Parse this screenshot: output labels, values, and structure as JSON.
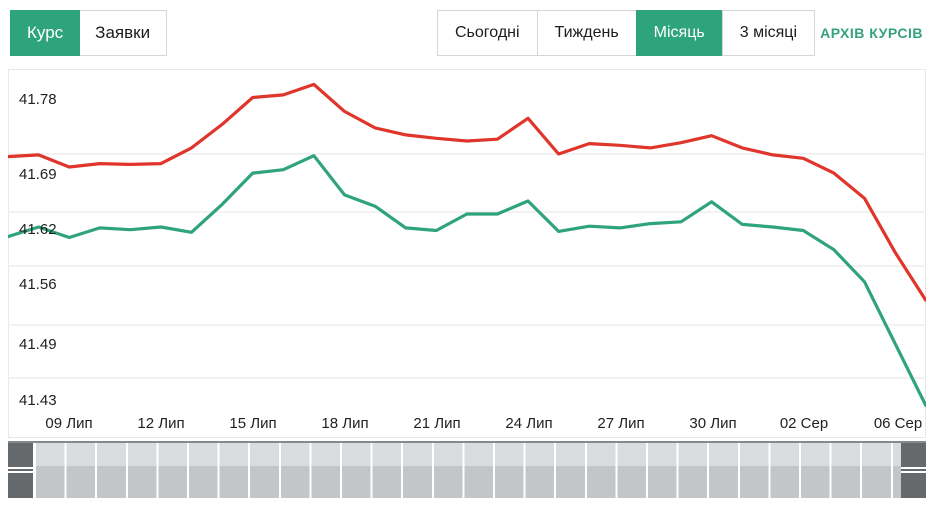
{
  "tabs": [
    {
      "label": "Курс",
      "active": true
    },
    {
      "label": "Заявки",
      "active": false
    }
  ],
  "periods": [
    {
      "label": "Сьогодні",
      "active": false
    },
    {
      "label": "Тиждень",
      "active": false
    },
    {
      "label": "Місяць",
      "active": true
    },
    {
      "label": "3 місяці",
      "active": false
    }
  ],
  "archive_link": "АРХІВ КУРСІВ",
  "colors": {
    "accent_green": "#2ea47c",
    "archive_text": "#35a27e",
    "red_line": "#e0352b",
    "green_line": "#2fa37c",
    "grid": "#ededed",
    "axis_text": "#212121",
    "slider_handle": "#65696b"
  },
  "chart_data": {
    "type": "line",
    "title": "",
    "xlabel": "",
    "ylabel": "",
    "grid": true,
    "legend": "none",
    "ylim": [
      41.39,
      41.8
    ],
    "y_tick_labels": [
      "41.78",
      "41.69",
      "41.62",
      "41.56",
      "41.49",
      "41.43"
    ],
    "x_tick_labels": [
      "09 Лип",
      "12 Лип",
      "15 Лип",
      "18 Лип",
      "21 Лип",
      "24 Лип",
      "27 Лип",
      "30 Лип",
      "02 Сер",
      "06 Сер"
    ],
    "x": [
      "07.07",
      "08.07",
      "09.07",
      "10.07",
      "11.07",
      "12.07",
      "13.07",
      "14.07",
      "15.07",
      "16.07",
      "17.07",
      "18.07",
      "19.07",
      "20.07",
      "21.07",
      "22.07",
      "23.07",
      "24.07",
      "25.07",
      "26.07",
      "27.07",
      "28.07",
      "29.07",
      "30.07",
      "31.07",
      "01.08",
      "02.08",
      "03.08",
      "04.08",
      "05.08",
      "06.08"
    ],
    "series": [
      {
        "name": "red-series",
        "color": "#e0352b",
        "values": [
          41.687,
          41.689,
          41.675,
          41.679,
          41.678,
          41.679,
          41.697,
          41.724,
          41.755,
          41.758,
          41.77,
          41.739,
          41.72,
          41.712,
          41.708,
          41.705,
          41.707,
          41.731,
          41.69,
          41.702,
          41.7,
          41.697,
          41.703,
          41.711,
          41.697,
          41.689,
          41.685,
          41.668,
          41.639,
          41.577,
          41.522
        ]
      },
      {
        "name": "green-series",
        "color": "#2fa37c",
        "values": [
          41.595,
          41.606,
          41.594,
          41.605,
          41.603,
          41.606,
          41.6,
          41.632,
          41.668,
          41.672,
          41.688,
          41.643,
          41.63,
          41.605,
          41.602,
          41.621,
          41.621,
          41.636,
          41.601,
          41.607,
          41.605,
          41.61,
          41.612,
          41.635,
          41.609,
          41.606,
          41.602,
          41.58,
          41.543,
          41.472,
          41.401
        ]
      }
    ]
  }
}
